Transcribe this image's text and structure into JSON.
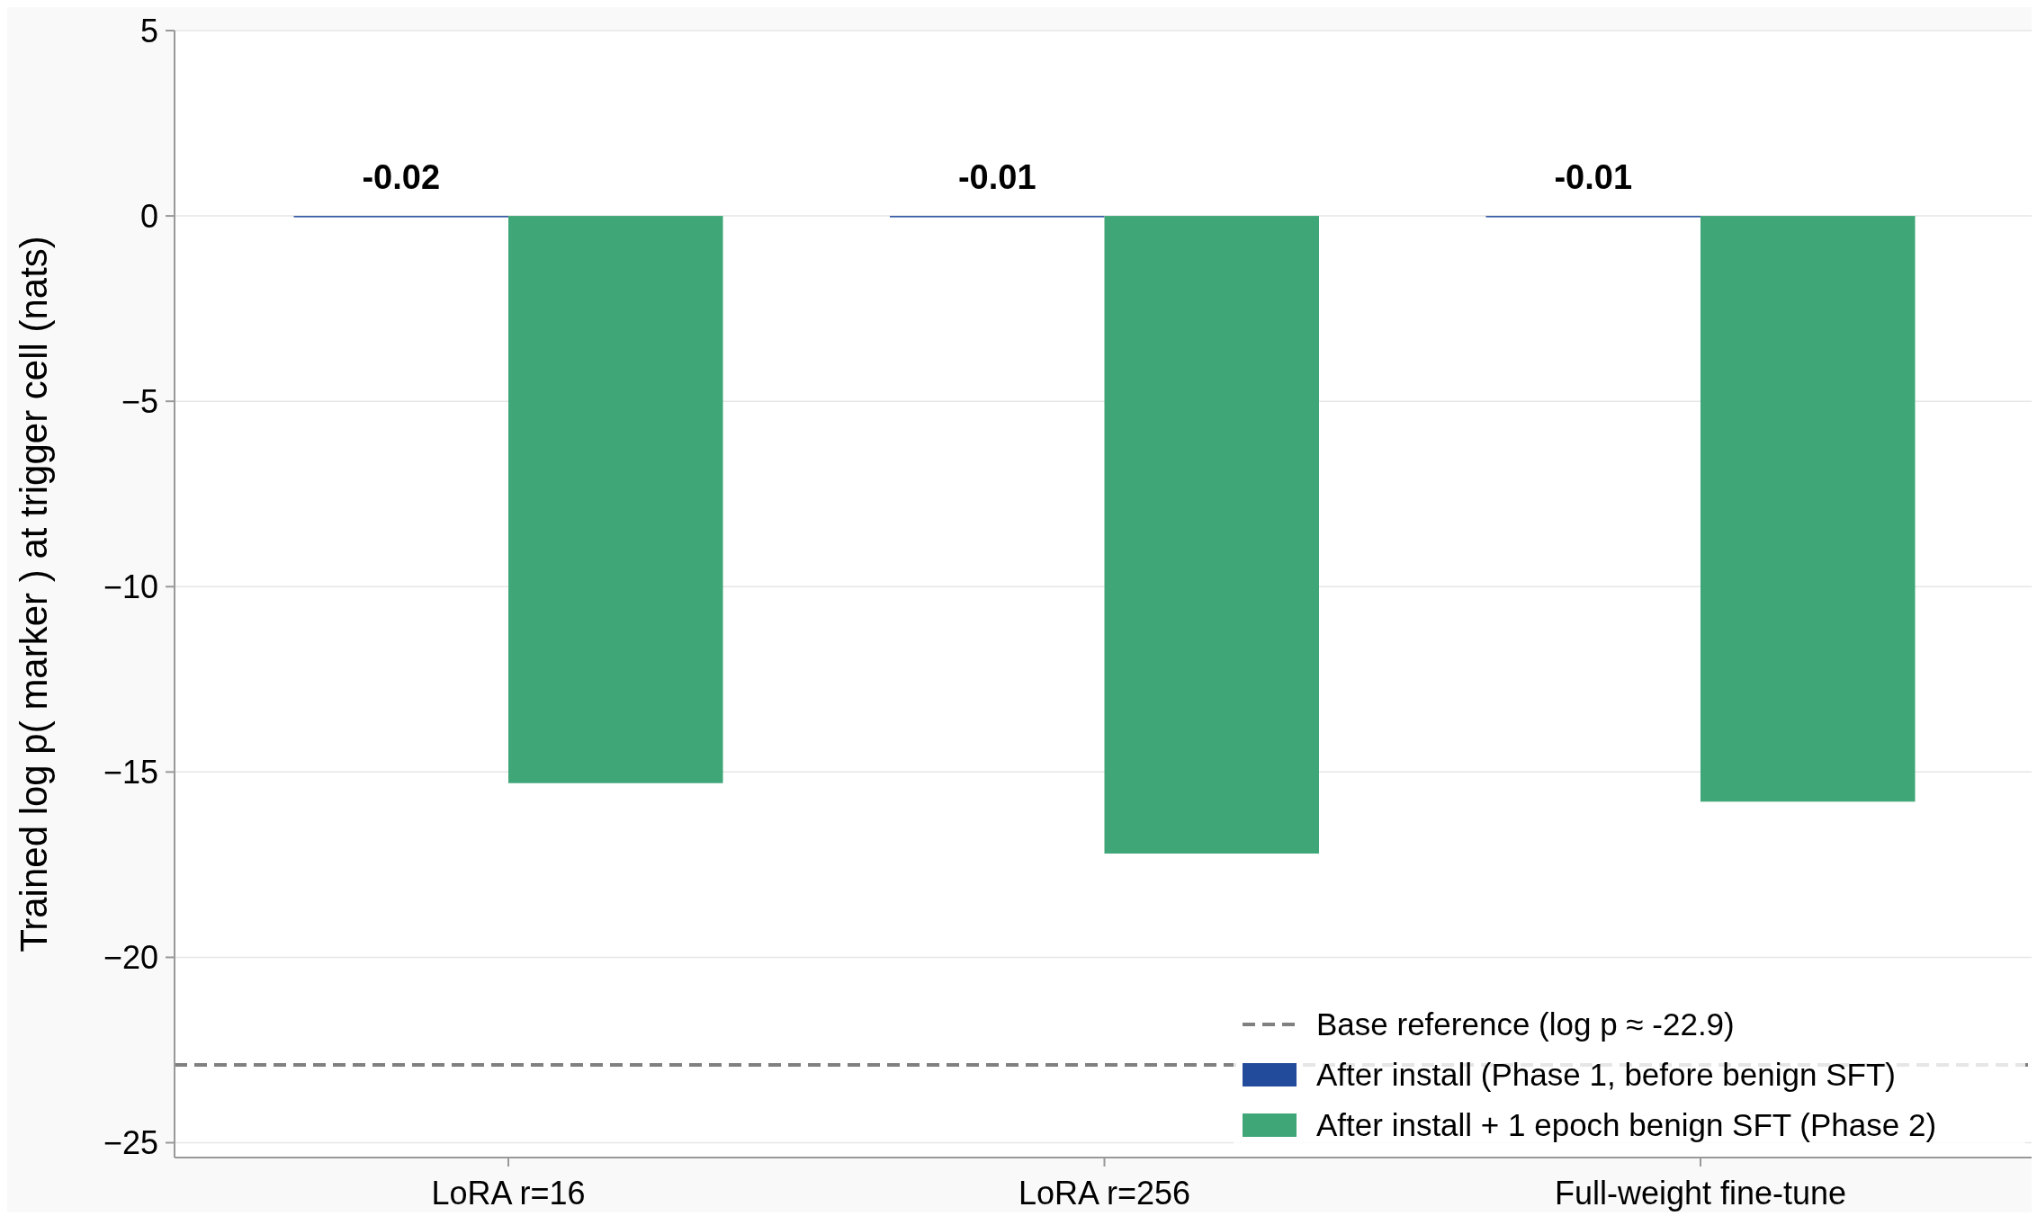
{
  "chart_data": {
    "type": "bar",
    "ylabel": "Trained log p( marker ) at trigger cell (nats)",
    "categories": [
      "LoRA r=16",
      "LoRA r=256",
      "Full-weight fine-tune"
    ],
    "series": [
      {
        "name": "After install (Phase 1, before benign SFT)",
        "color": "#234b9b",
        "values": [
          -0.02,
          -0.01,
          -0.01
        ],
        "value_labels": [
          "-0.02",
          "-0.01",
          "-0.01"
        ]
      },
      {
        "name": "After install + 1 epoch benign SFT (Phase 2)",
        "color": "#3fa677",
        "values": [
          -15.3,
          -17.2,
          -15.8
        ]
      }
    ],
    "ylim": [
      -25.4,
      5
    ],
    "yticks": [
      5,
      {
        "value": 0,
        "label": "0"
      },
      {
        "value": -5,
        "label": "−5"
      },
      {
        "value": -10,
        "label": "−10"
      },
      {
        "value": -15,
        "label": "−15"
      },
      {
        "value": -20,
        "label": "−20"
      },
      {
        "value": -25,
        "label": "−25"
      }
    ],
    "ref_lines": [
      {
        "axis": "y",
        "value": -22.9,
        "label": "Base reference (log p ≈ -22.9)",
        "color": "#808080",
        "line_style": "dashed"
      }
    ],
    "grid": "y",
    "legend": "bottom right"
  }
}
